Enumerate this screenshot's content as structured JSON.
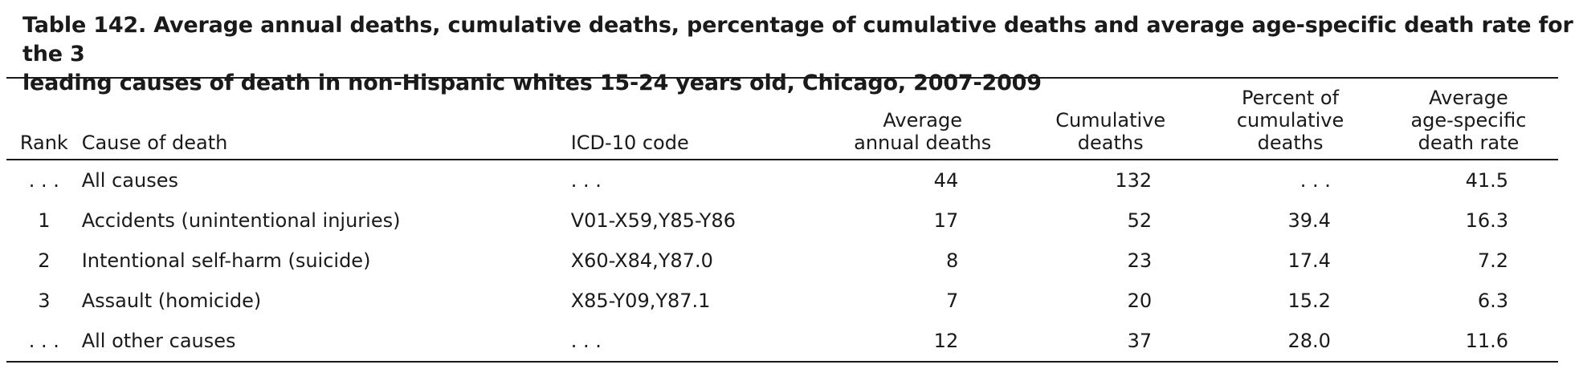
{
  "title": "Table 142. Average annual deaths, cumulative deaths, percentage of cumulative deaths and average age-specific death rate for the 3\nleading causes of death in non-Hispanic whites 15-24 years old, Chicago, 2007-2009",
  "headers": {
    "rank": "Rank",
    "cause": "Cause of death",
    "icd": "ICD-10 code",
    "avg": "Average\nannual deaths",
    "cum": "Cumulative\ndeaths",
    "pct": "Percent of\ncumulative\ndeaths",
    "rate": "Average\nage-specific\ndeath rate"
  },
  "rows": [
    {
      "rank": ". . .",
      "cause": "All causes",
      "icd": ". . .",
      "avg": "44",
      "cum": "132",
      "pct": ". . .",
      "rate": "41.5"
    },
    {
      "rank": "1",
      "cause": "Accidents (unintentional injuries)",
      "icd": "V01-X59,Y85-Y86",
      "avg": "17",
      "cum": "52",
      "pct": "39.4",
      "rate": "16.3"
    },
    {
      "rank": "2",
      "cause": "Intentional self-harm (suicide)",
      "icd": "X60-X84,Y87.0",
      "avg": "8",
      "cum": "23",
      "pct": "17.4",
      "rate": "7.2"
    },
    {
      "rank": "3",
      "cause": "Assault (homicide)",
      "icd": "X85-Y09,Y87.1",
      "avg": "7",
      "cum": "20",
      "pct": "15.2",
      "rate": "6.3"
    },
    {
      "rank": ". . .",
      "cause": "All other causes",
      "icd": ". . .",
      "avg": "12",
      "cum": "37",
      "pct": "28.0",
      "rate": "11.6"
    }
  ]
}
